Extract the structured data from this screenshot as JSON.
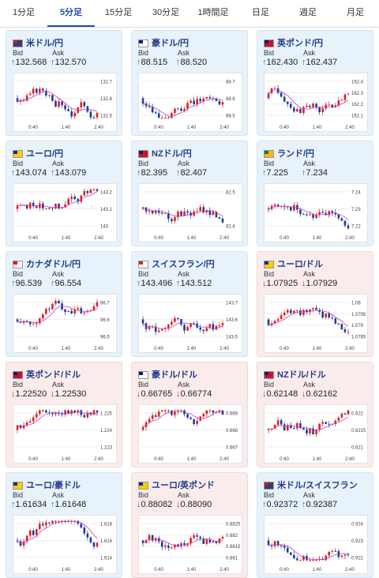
{
  "tabs": [
    {
      "label": "1分足",
      "active": false
    },
    {
      "label": "5分足",
      "active": true
    },
    {
      "label": "15分足",
      "active": false
    },
    {
      "label": "30分足",
      "active": false
    },
    {
      "label": "1時間足",
      "active": false
    },
    {
      "label": "日足",
      "active": false
    },
    {
      "label": "週足",
      "active": false
    },
    {
      "label": "月足",
      "active": false
    }
  ],
  "labels": {
    "bid": "Bid",
    "ask": "Ask"
  },
  "colors": {
    "up_arrow": "#1a6fd6",
    "down_arrow": "#d02020",
    "bull": "#e02020",
    "bear": "#1f3c9a",
    "ma": "#c040c0",
    "ma2": "#40a0e0"
  },
  "x_ticks": [
    "0:40",
    "1:40",
    "2:40"
  ],
  "cards": [
    {
      "pair": "米ドル/円",
      "flag": "us",
      "bg": "blue",
      "dir": "up",
      "bid": "132.568",
      "ask": "132.570",
      "yticks": [
        "132.7",
        "132.6",
        "132.5"
      ]
    },
    {
      "pair": "豪ドル/円",
      "flag": "au",
      "bg": "blue",
      "dir": "up",
      "bid": "88.515",
      "ask": "88.520",
      "yticks": [
        "88.7",
        "88.6",
        "88.5"
      ]
    },
    {
      "pair": "英ポンド/円",
      "flag": "gb",
      "bg": "blue",
      "dir": "up",
      "bid": "162.430",
      "ask": "162.437",
      "yticks": [
        "162.4",
        "162.3",
        "162.2",
        "162.1"
      ]
    },
    {
      "pair": "ユーロ/円",
      "flag": "eu",
      "bg": "blue",
      "dir": "up",
      "bid": "143.074",
      "ask": "143.079",
      "yticks": [
        "143.2",
        "143.1",
        "143"
      ]
    },
    {
      "pair": "NZドル/円",
      "flag": "nz",
      "bg": "blue",
      "dir": "up",
      "bid": "82.395",
      "ask": "82.407",
      "yticks": [
        "82.5",
        "82.4"
      ]
    },
    {
      "pair": "ランド/円",
      "flag": "za",
      "bg": "blue",
      "dir": "up",
      "bid": "7.225",
      "ask": "7.234",
      "yticks": [
        "7.24",
        "7.23",
        "7.22"
      ]
    },
    {
      "pair": "カナダドル/円",
      "flag": "ca",
      "bg": "blue",
      "dir": "up",
      "bid": "96.539",
      "ask": "96.554",
      "yticks": [
        "96.7",
        "96.6",
        "96.5"
      ]
    },
    {
      "pair": "スイスフラン/円",
      "flag": "ch",
      "bg": "blue",
      "dir": "up",
      "bid": "143.496",
      "ask": "143.512",
      "yticks": [
        "143.7",
        "143.6",
        "143.5"
      ]
    },
    {
      "pair": "ユーロ/ドル",
      "flag": "eu",
      "bg": "pink",
      "dir": "down",
      "bid": "1.07925",
      "ask": "1.07929",
      "yticks": [
        "1.08",
        "1.0795",
        "1.079",
        "1.0785"
      ]
    },
    {
      "pair": "英ポンド/ドル",
      "flag": "gb",
      "bg": "pink",
      "dir": "down",
      "bid": "1.22520",
      "ask": "1.22530",
      "yticks": [
        "1.225",
        "1.224",
        "1.223"
      ]
    },
    {
      "pair": "豪ドル/ドル",
      "flag": "au",
      "bg": "pink",
      "dir": "down",
      "bid": "0.66765",
      "ask": "0.66774",
      "yticks": [
        "0.669",
        "0.668",
        "0.667"
      ]
    },
    {
      "pair": "NZドル/ドル",
      "flag": "nz",
      "bg": "pink",
      "dir": "down",
      "bid": "0.62148",
      "ask": "0.62162",
      "yticks": [
        "0.622",
        "0.6215",
        "0.621"
      ]
    },
    {
      "pair": "ユーロ/豪ドル",
      "flag": "eu",
      "bg": "blue",
      "dir": "up",
      "bid": "1.61634",
      "ask": "1.61648",
      "yticks": [
        "1.618",
        "1.616",
        "1.614"
      ]
    },
    {
      "pair": "ユーロ/英ポンド",
      "flag": "eu",
      "bg": "pink",
      "dir": "down",
      "bid": "0.88082",
      "ask": "0.88090",
      "yticks": [
        "0.8825",
        "0.882",
        "0.8815",
        "0.881"
      ]
    },
    {
      "pair": "米ドル/スイスフラン",
      "flag": "us",
      "bg": "blue",
      "dir": "up",
      "bid": "0.92372",
      "ask": "0.92387",
      "yticks": [
        "0.924",
        "0.923",
        "0.922"
      ]
    }
  ]
}
